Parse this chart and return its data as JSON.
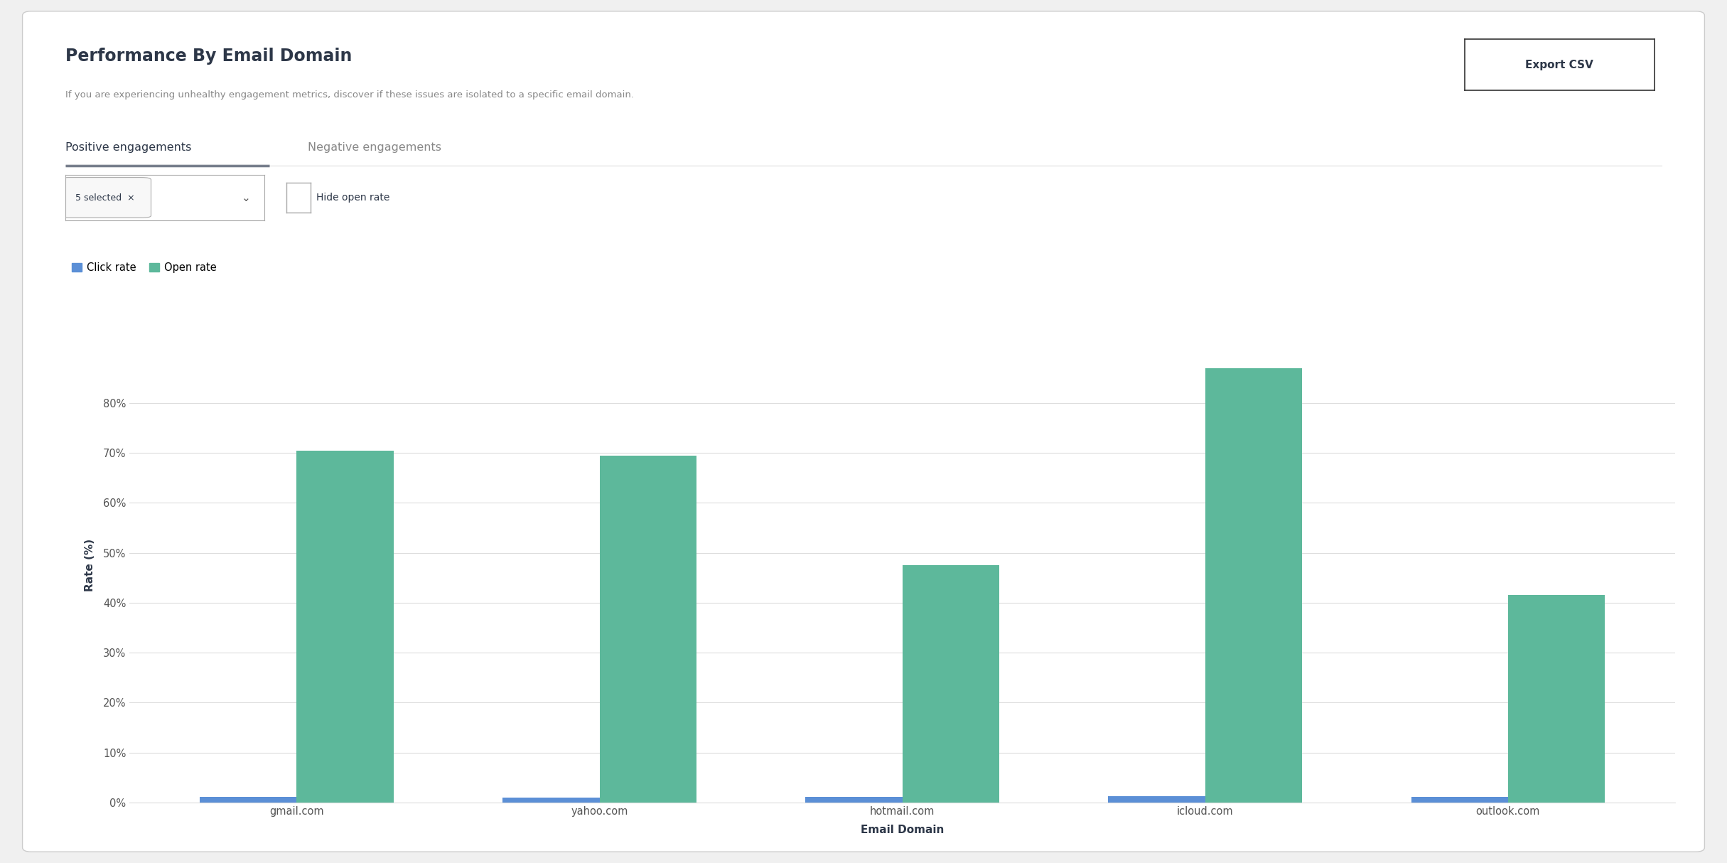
{
  "title": "Performance By Email Domain",
  "subtitle": "If you are experiencing unhealthy engagement metrics, discover if these issues are isolated to a specific email domain.",
  "tab_active": "Positive engagements",
  "tab_inactive": "Negative engagements",
  "filter_label": "5 selected  ×",
  "checkbox_label": "Hide open rate",
  "legend": [
    {
      "label": "Click rate",
      "color": "#5b8fd6"
    },
    {
      "label": "Open rate",
      "color": "#5db89b"
    }
  ],
  "domains": [
    "gmail.com",
    "yahoo.com",
    "hotmail.com",
    "icloud.com",
    "outlook.com"
  ],
  "click_rates": [
    1.2,
    1.0,
    1.1,
    1.3,
    1.1
  ],
  "open_rates": [
    70.5,
    69.5,
    47.5,
    87.0,
    41.5
  ],
  "xlabel": "Email Domain",
  "ylabel": "Rate (%)",
  "yticks": [
    0,
    10,
    20,
    30,
    40,
    50,
    60,
    70,
    80
  ],
  "ytick_labels": [
    "0%",
    "10%",
    "20%",
    "30%",
    "40%",
    "50%",
    "60%",
    "70%",
    "80%"
  ],
  "ylim": [
    0,
    95
  ],
  "background_color": "#f0f0f0",
  "card_color": "#ffffff",
  "grid_color": "#dddddd",
  "bar_width": 0.32,
  "title_fontsize": 17,
  "subtitle_fontsize": 9.5,
  "axis_label_fontsize": 11,
  "tick_fontsize": 10.5,
  "legend_fontsize": 10.5,
  "tab_fontsize": 11.5,
  "click_color": "#5b8fd6",
  "open_color": "#5db89b",
  "text_color_dark": "#2d3748",
  "text_color_mid": "#555555",
  "text_color_light": "#888888",
  "tab_underline_color": "#4a5568"
}
